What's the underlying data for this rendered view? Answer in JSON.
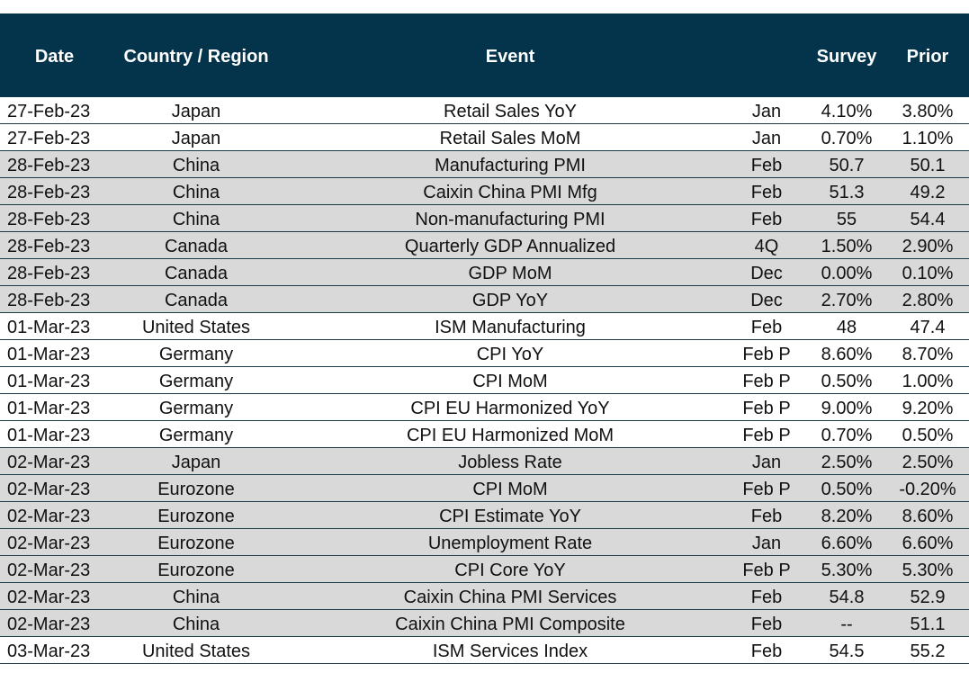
{
  "colors": {
    "header_bg": "#03344c",
    "header_text": "#ffffff",
    "shade_bg": "#d9d9d9",
    "row_border": "#1b3a4a"
  },
  "header": {
    "date": "Date",
    "country": "Country / Region",
    "event": "Event",
    "period": "",
    "survey": "Survey",
    "prior": "Prior"
  },
  "rows": [
    {
      "date": "27-Feb-23",
      "country": "Japan",
      "event": "Retail Sales YoY",
      "period": "Jan",
      "survey": "4.10%",
      "prior": "3.80%",
      "shade": false
    },
    {
      "date": "27-Feb-23",
      "country": "Japan",
      "event": "Retail Sales MoM",
      "period": "Jan",
      "survey": "0.70%",
      "prior": "1.10%",
      "shade": false
    },
    {
      "date": "28-Feb-23",
      "country": "China",
      "event": "Manufacturing PMI",
      "period": "Feb",
      "survey": "50.7",
      "prior": "50.1",
      "shade": true
    },
    {
      "date": "28-Feb-23",
      "country": "China",
      "event": "Caixin China PMI Mfg",
      "period": "Feb",
      "survey": "51.3",
      "prior": "49.2",
      "shade": true
    },
    {
      "date": "28-Feb-23",
      "country": "China",
      "event": "Non-manufacturing PMI",
      "period": "Feb",
      "survey": "55",
      "prior": "54.4",
      "shade": true
    },
    {
      "date": "28-Feb-23",
      "country": "Canada",
      "event": "Quarterly GDP Annualized",
      "period": "4Q",
      "survey": "1.50%",
      "prior": "2.90%",
      "shade": true
    },
    {
      "date": "28-Feb-23",
      "country": "Canada",
      "event": "GDP MoM",
      "period": "Dec",
      "survey": "0.00%",
      "prior": "0.10%",
      "shade": true
    },
    {
      "date": "28-Feb-23",
      "country": "Canada",
      "event": "GDP YoY",
      "period": "Dec",
      "survey": "2.70%",
      "prior": "2.80%",
      "shade": true
    },
    {
      "date": "01-Mar-23",
      "country": "United States",
      "event": "ISM Manufacturing",
      "period": "Feb",
      "survey": "48",
      "prior": "47.4",
      "shade": false
    },
    {
      "date": "01-Mar-23",
      "country": "Germany",
      "event": "CPI YoY",
      "period": "Feb P",
      "survey": "8.60%",
      "prior": "8.70%",
      "shade": false
    },
    {
      "date": "01-Mar-23",
      "country": "Germany",
      "event": "CPI MoM",
      "period": "Feb P",
      "survey": "0.50%",
      "prior": "1.00%",
      "shade": false
    },
    {
      "date": "01-Mar-23",
      "country": "Germany",
      "event": "CPI EU Harmonized YoY",
      "period": "Feb P",
      "survey": "9.00%",
      "prior": "9.20%",
      "shade": false
    },
    {
      "date": "01-Mar-23",
      "country": "Germany",
      "event": "CPI EU Harmonized MoM",
      "period": "Feb P",
      "survey": "0.70%",
      "prior": "0.50%",
      "shade": false
    },
    {
      "date": "02-Mar-23",
      "country": "Japan",
      "event": "Jobless Rate",
      "period": "Jan",
      "survey": "2.50%",
      "prior": "2.50%",
      "shade": true
    },
    {
      "date": "02-Mar-23",
      "country": "Eurozone",
      "event": "CPI MoM",
      "period": "Feb P",
      "survey": "0.50%",
      "prior": "-0.20%",
      "shade": true
    },
    {
      "date": "02-Mar-23",
      "country": "Eurozone",
      "event": "CPI Estimate YoY",
      "period": "Feb",
      "survey": "8.20%",
      "prior": "8.60%",
      "shade": true
    },
    {
      "date": "02-Mar-23",
      "country": "Eurozone",
      "event": "Unemployment Rate",
      "period": "Jan",
      "survey": "6.60%",
      "prior": "6.60%",
      "shade": true
    },
    {
      "date": "02-Mar-23",
      "country": "Eurozone",
      "event": "CPI Core YoY",
      "period": "Feb P",
      "survey": "5.30%",
      "prior": "5.30%",
      "shade": true
    },
    {
      "date": "02-Mar-23",
      "country": "China",
      "event": "Caixin China PMI Services",
      "period": "Feb",
      "survey": "54.8",
      "prior": "52.9",
      "shade": true
    },
    {
      "date": "02-Mar-23",
      "country": "China",
      "event": "Caixin China PMI Composite",
      "period": "Feb",
      "survey": "--",
      "prior": "51.1",
      "shade": true
    },
    {
      "date": "03-Mar-23",
      "country": "United States",
      "event": "ISM Services Index",
      "period": "Feb",
      "survey": "54.5",
      "prior": "55.2",
      "shade": false
    }
  ]
}
